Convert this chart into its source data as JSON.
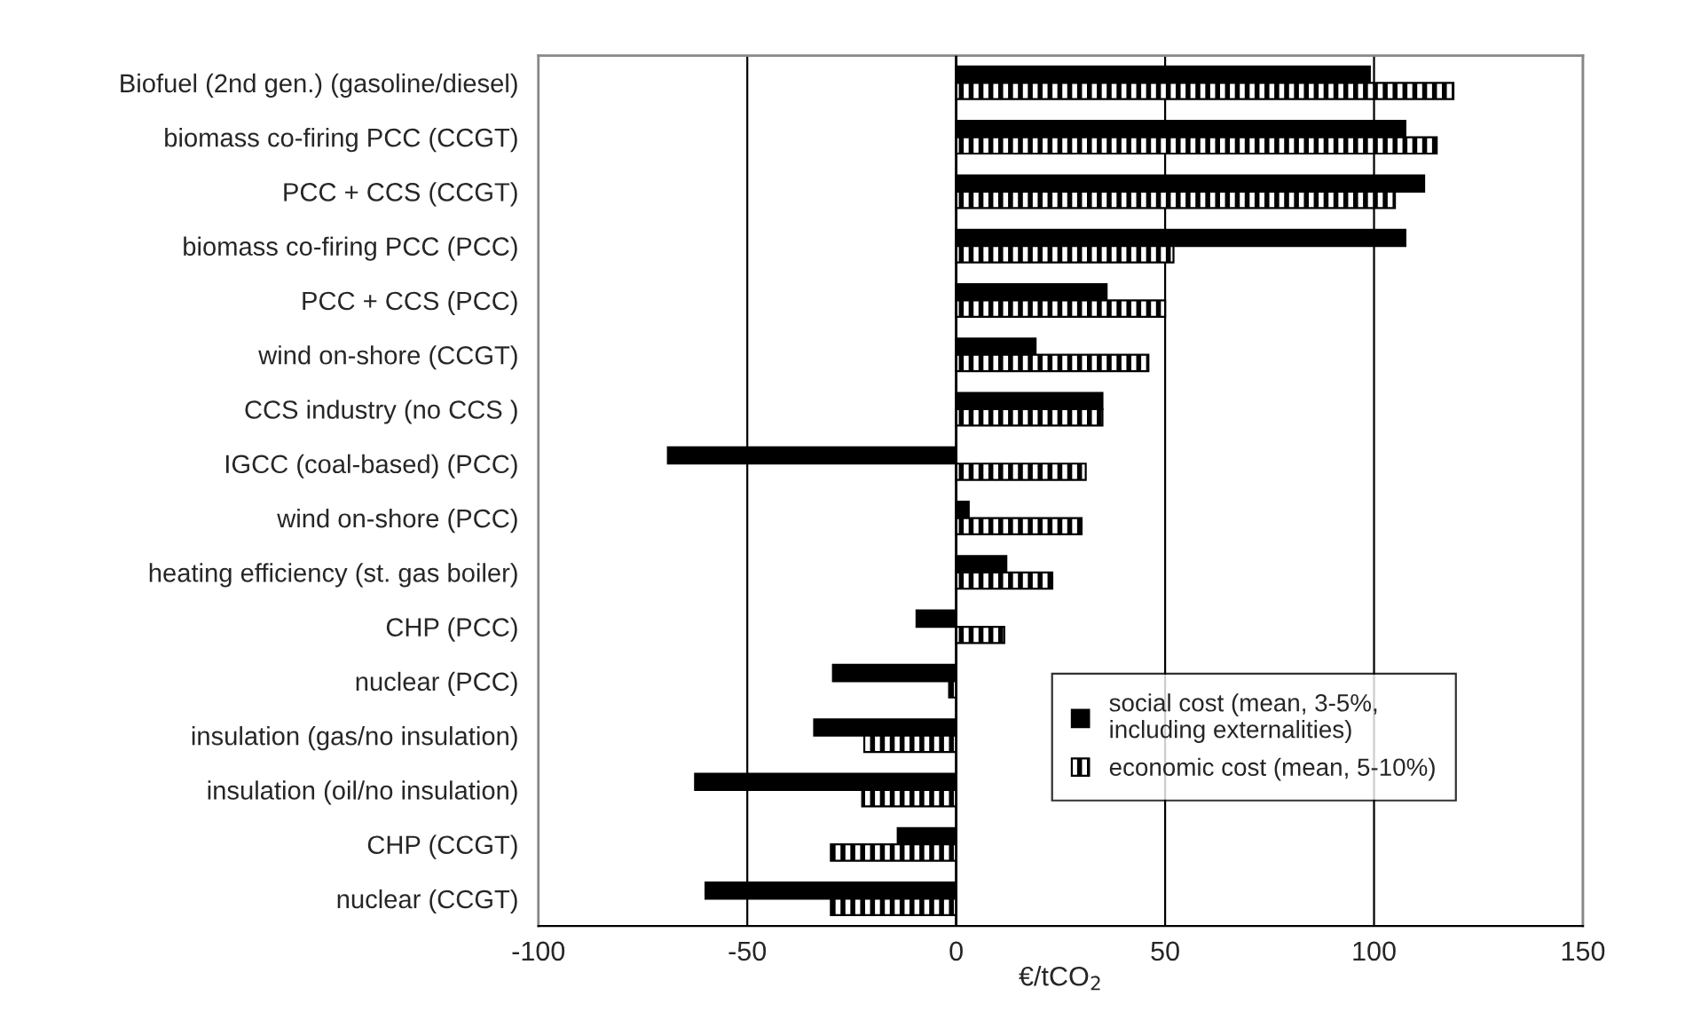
{
  "chart_data": {
    "type": "bar",
    "orientation": "horizontal",
    "xlabel": "€/tCO$_{2}$",
    "categories": [
      "Biofuel (2nd gen.) (gasoline/diesel)",
      "biomass co-firing PCC (CCGT)",
      "PCC + CCS (CCGT)",
      "biomass co-firing PCC (PCC)",
      "PCC + CCS (PCC)",
      "wind on-shore (CCGT)",
      "CCS industry (no CCS )",
      "IGCC (coal-based) (PCC)",
      "wind on-shore (PCC)",
      "heating efficiency (st. gas boiler)",
      "CHP (PCC)",
      "nuclear (PCC)",
      "insulation (gas/no insulation)",
      "insulation (oil/no insulation)",
      "CHP (CCGT)",
      "nuclear (CCGT)"
    ],
    "series": [
      {
        "name": "social cost (mean, 3-5%,\nincluding externalities)",
        "color": "#000000",
        "values": [
          99,
          107.5,
          112,
          107.5,
          36,
          19,
          35,
          -69,
          3,
          12,
          -9.5,
          -29.5,
          -34,
          -62.5,
          -14,
          -60
        ]
      },
      {
        "name": "economic cost (mean, 5-10%)",
        "color": "#000000",
        "values": [
          119,
          115,
          105,
          52,
          50,
          46,
          35,
          31,
          30,
          23,
          11.5,
          -1.7,
          -22,
          -22.5,
          -30,
          -30
        ]
      }
    ],
    "xlim": [
      -100,
      150
    ],
    "xticks": [
      -100,
      -50,
      0,
      50,
      100,
      150
    ],
    "grid": "x",
    "legend": "bottom right"
  }
}
